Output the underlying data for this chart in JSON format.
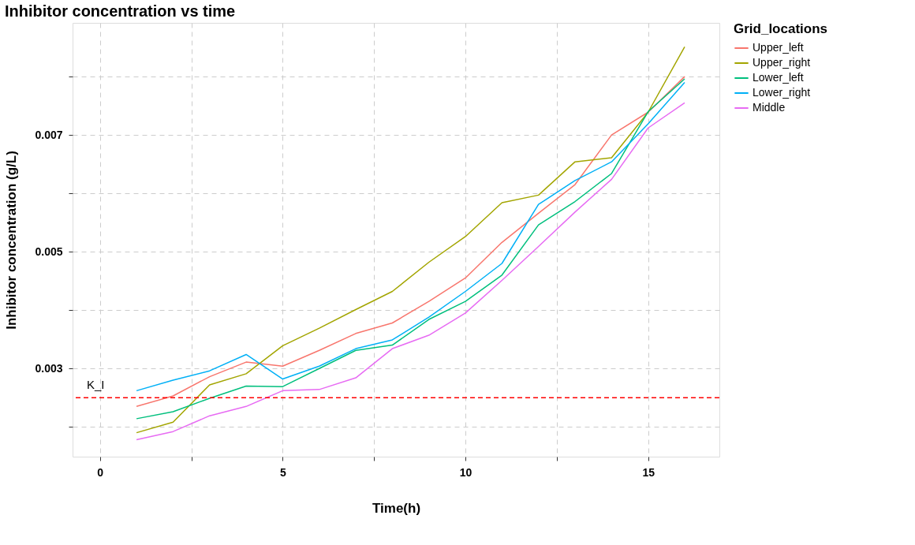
{
  "chart_data": {
    "type": "line",
    "title": "Inhibitor concentration vs time",
    "xlabel": "Time(h)",
    "ylabel": "Inhibitor concentration (g/L)",
    "legend_title": "Grid_locations",
    "x": [
      1,
      2,
      3,
      4,
      5,
      6,
      7,
      8,
      9,
      10,
      11,
      12,
      13,
      14,
      15,
      16
    ],
    "series": [
      {
        "name": "Upper_left",
        "color": "#f8766d",
        "values": [
          0.00235,
          0.00253,
          0.00286,
          0.00311,
          0.00304,
          0.00331,
          0.0036,
          0.00378,
          0.00415,
          0.00455,
          0.00516,
          0.00566,
          0.00615,
          0.007,
          0.00739,
          0.008
        ]
      },
      {
        "name": "Upper_right",
        "color": "#a3a500",
        "values": [
          0.0019,
          0.00208,
          0.00272,
          0.00291,
          0.00339,
          0.00369,
          0.00401,
          0.00432,
          0.00482,
          0.00526,
          0.00584,
          0.00597,
          0.00654,
          0.00661,
          0.00739,
          0.00851
        ]
      },
      {
        "name": "Lower_left",
        "color": "#00bf7d",
        "values": [
          0.00214,
          0.00226,
          0.00249,
          0.0027,
          0.00269,
          0.003,
          0.00331,
          0.0034,
          0.00384,
          0.00415,
          0.0046,
          0.00546,
          0.00586,
          0.00634,
          0.0074,
          0.00796
        ]
      },
      {
        "name": "Lower_right",
        "color": "#00b0f6",
        "values": [
          0.00262,
          0.0028,
          0.00296,
          0.00324,
          0.00282,
          0.00304,
          0.00334,
          0.00349,
          0.00388,
          0.00432,
          0.0048,
          0.00581,
          0.00622,
          0.00654,
          0.00719,
          0.0079
        ]
      },
      {
        "name": "Middle",
        "color": "#e76bf3",
        "values": [
          0.00178,
          0.00192,
          0.00219,
          0.00235,
          0.00262,
          0.00264,
          0.00284,
          0.00334,
          0.00357,
          0.00395,
          0.00451,
          0.00509,
          0.00568,
          0.00624,
          0.00712,
          0.00755
        ]
      }
    ],
    "xlim": [
      -0.75,
      16.95
    ],
    "xticks": [
      0,
      {
        "value": 2.5,
        "label": null
      },
      5,
      {
        "value": 7.5,
        "label": null
      },
      10,
      {
        "value": 12.5,
        "label": null
      },
      15
    ],
    "ylim": [
      0.00149,
      0.00892
    ],
    "yticks": [
      {
        "value": 0.002,
        "label": null
      },
      0.003,
      {
        "value": 0.004,
        "label": null
      },
      0.005,
      {
        "value": 0.006,
        "label": null
      },
      0.007,
      {
        "value": 0.008,
        "label": null
      }
    ],
    "ref_lines": [
      {
        "axis": "y",
        "value": 0.0025,
        "label": "K_I",
        "color": "#ff0000",
        "line_style": "dashed"
      }
    ],
    "grid": true,
    "legend": "right",
    "marker": "none",
    "line_style": "solid"
  }
}
